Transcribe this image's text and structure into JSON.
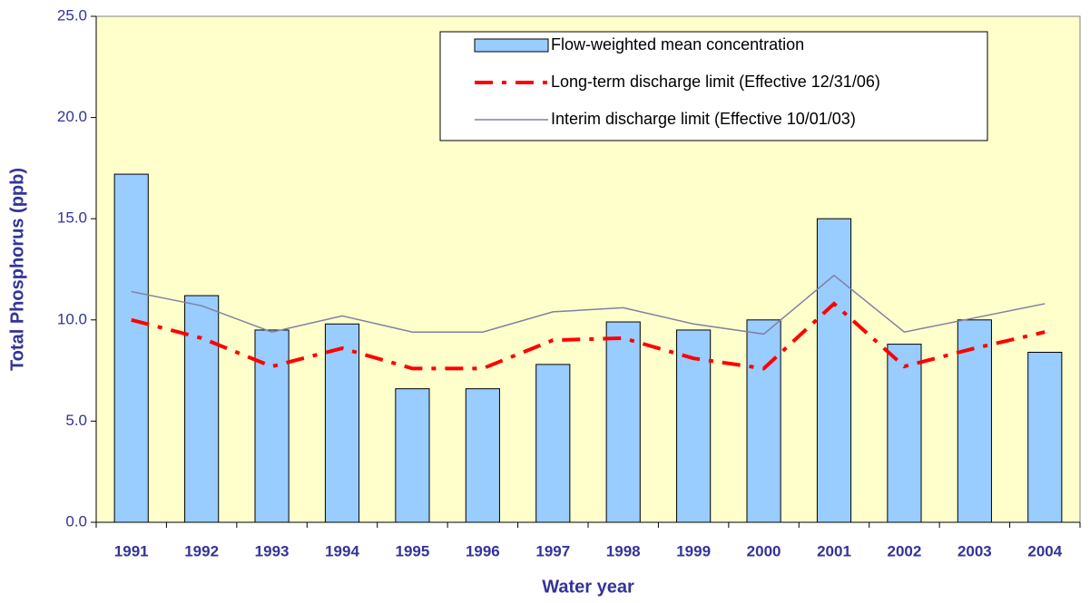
{
  "chart_data": {
    "type": "bar",
    "x_label": "Water year",
    "y_label": "Total Phosphorus (ppb)",
    "categories": [
      "1991",
      "1992",
      "1993",
      "1994",
      "1995",
      "1996",
      "1997",
      "1998",
      "1999",
      "2000",
      "2001",
      "2002",
      "2003",
      "2004"
    ],
    "series": [
      {
        "name": "Flow-weighted mean concentration",
        "type": "bar",
        "color": "#99ccff",
        "values": [
          17.2,
          11.2,
          9.5,
          9.8,
          6.6,
          6.6,
          7.8,
          9.9,
          9.5,
          10.0,
          15.0,
          8.8,
          10.0,
          8.4
        ]
      },
      {
        "name": "Long-term discharge limit (Effective 12/31/06)",
        "type": "line",
        "line_style": "dashdot",
        "color": "#ff0000",
        "values": [
          10.0,
          9.1,
          7.7,
          8.6,
          7.6,
          7.6,
          9.0,
          9.1,
          8.1,
          7.6,
          10.8,
          7.7,
          8.6,
          9.4
        ]
      },
      {
        "name": "Interim discharge limit (Effective 10/01/03)",
        "type": "line",
        "line_style": "solid",
        "color": "#8080a0",
        "values": [
          11.4,
          10.7,
          9.4,
          10.2,
          9.4,
          9.4,
          10.4,
          10.6,
          9.8,
          9.3,
          12.2,
          9.4,
          10.1,
          10.8
        ]
      }
    ],
    "ylim": [
      0,
      25
    ],
    "yticks": [
      {
        "value": 0,
        "label": "0.0"
      },
      {
        "value": 5,
        "label": "5.0"
      },
      {
        "value": 10,
        "label": "10.0"
      },
      {
        "value": 15,
        "label": "15.0"
      },
      {
        "value": 20,
        "label": "20.0"
      },
      {
        "value": 25,
        "label": "25.0"
      }
    ],
    "legend": "upper right",
    "plot_background": "#ffffcc"
  }
}
